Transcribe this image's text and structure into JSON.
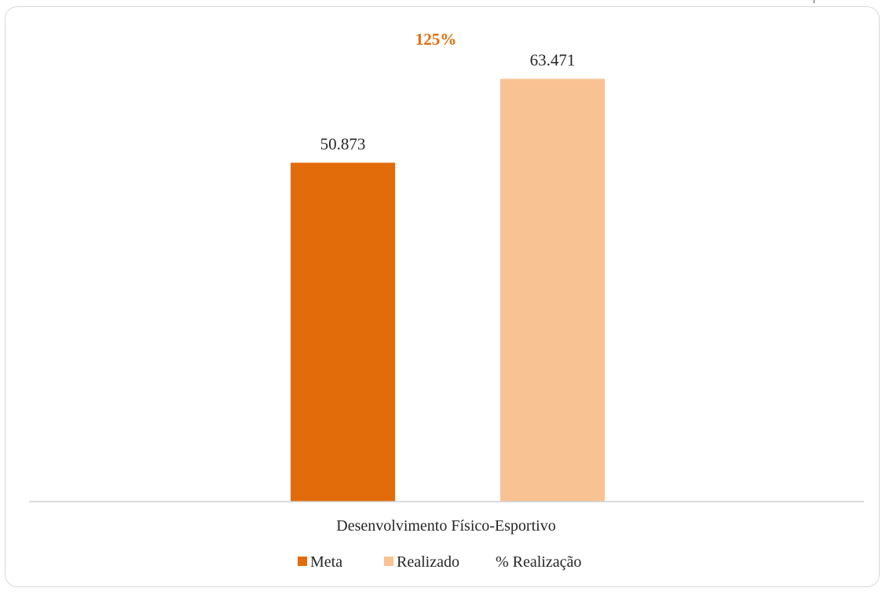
{
  "chart_data": {
    "type": "bar",
    "categories": [
      "Desenvolvimento Físico-Esportivo"
    ],
    "series": [
      {
        "name": "Meta",
        "values": [
          50873
        ],
        "label": "50.873",
        "color": "#e36c0a"
      },
      {
        "name": "Realizado",
        "values": [
          63471
        ],
        "label": "63.471",
        "color": "#f9c292"
      }
    ],
    "percent_series": {
      "name": "% Realização",
      "values": [
        125
      ],
      "label": "125%",
      "color": "#e36c0a"
    },
    "ylim": [
      0,
      70000
    ],
    "grid": false,
    "legend_position": "bottom",
    "title": "",
    "xlabel": "",
    "ylabel": ""
  }
}
